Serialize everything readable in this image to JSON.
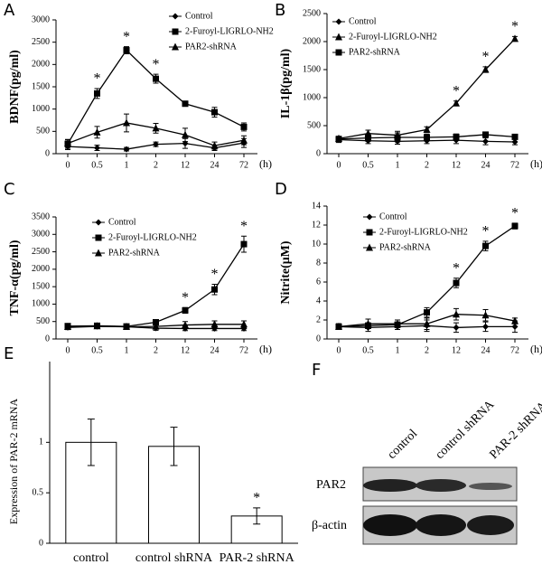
{
  "chart_data": [
    {
      "type": "line",
      "panel_label": "A",
      "y_label": "BDNF(pg/ml)",
      "x_label": "(h)",
      "categories": [
        "0",
        "0.5",
        "1",
        "2",
        "12",
        "24",
        "72"
      ],
      "ylim": [
        0,
        3000
      ],
      "yticks": [
        0,
        500,
        1000,
        1500,
        2000,
        2500,
        3000
      ],
      "series": [
        {
          "name": "Control",
          "color": "#000000",
          "marker": "diamond",
          "values": [
            160,
            130,
            100,
            210,
            230,
            130,
            240
          ],
          "errors": [
            70,
            60,
            40,
            50,
            110,
            60,
            100
          ]
        },
        {
          "name": "2-Furoyl-LIGRLO-NH2",
          "color": "#000000",
          "marker": "square",
          "values": [
            220,
            1350,
            2320,
            1680,
            1120,
            930,
            600
          ],
          "errors": [
            100,
            110,
            80,
            100,
            40,
            110,
            90
          ]
        },
        {
          "name": "PAR2-shRNA",
          "color": "#000000",
          "marker": "triangle",
          "values": [
            230,
            480,
            690,
            570,
            420,
            180,
            300
          ],
          "errors": [
            80,
            130,
            200,
            110,
            150,
            80,
            100
          ]
        }
      ],
      "annotations": [
        {
          "text": "*",
          "series": 1,
          "category": 1
        },
        {
          "text": "*",
          "series": 1,
          "category": 2
        },
        {
          "text": "*",
          "series": 1,
          "category": 3
        }
      ]
    },
    {
      "type": "line",
      "panel_label": "B",
      "y_label": "IL-1β(pg/ml)",
      "x_label": "(h)",
      "categories": [
        "0",
        "0.5",
        "1",
        "2",
        "12",
        "24",
        "72"
      ],
      "ylim": [
        0,
        2500
      ],
      "yticks": [
        0,
        500,
        1000,
        1500,
        2000,
        2500
      ],
      "series": [
        {
          "name": "Control",
          "color": "#000000",
          "marker": "diamond",
          "values": [
            250,
            230,
            220,
            230,
            240,
            220,
            210
          ],
          "errors": [
            50,
            50,
            50,
            50,
            60,
            60,
            50
          ]
        },
        {
          "name": "2-Furoyl-LIGRLO-NH2",
          "color": "#000000",
          "marker": "triangle",
          "values": [
            270,
            360,
            330,
            430,
            900,
            1500,
            2050
          ],
          "errors": [
            40,
            60,
            70,
            50,
            40,
            50,
            40
          ]
        },
        {
          "name": "PAR2-shRNA",
          "color": "#000000",
          "marker": "square",
          "values": [
            260,
            280,
            290,
            290,
            300,
            340,
            300
          ],
          "errors": [
            40,
            60,
            80,
            60,
            50,
            40,
            40
          ]
        }
      ],
      "annotations": [
        {
          "text": "*",
          "series": 1,
          "category": 4
        },
        {
          "text": "*",
          "series": 1,
          "category": 5
        },
        {
          "text": "*",
          "series": 1,
          "category": 6
        }
      ]
    },
    {
      "type": "line",
      "panel_label": "C",
      "y_label": "TNF-α(pg/ml)",
      "x_label": "(h)",
      "categories": [
        "0",
        "0.5",
        "1",
        "2",
        "12",
        "24",
        "72"
      ],
      "ylim": [
        0,
        3500
      ],
      "yticks": [
        0,
        500,
        1000,
        1500,
        2000,
        2500,
        3000,
        3500
      ],
      "series": [
        {
          "name": "Control",
          "color": "#000000",
          "marker": "diamond",
          "values": [
            330,
            360,
            350,
            310,
            300,
            300,
            300
          ],
          "errors": [
            60,
            50,
            50,
            60,
            60,
            60,
            60
          ]
        },
        {
          "name": "2-Furoyl-LIGRLO-NH2",
          "color": "#000000",
          "marker": "square",
          "values": [
            370,
            380,
            360,
            480,
            820,
            1420,
            2720
          ],
          "errors": [
            60,
            50,
            50,
            60,
            80,
            150,
            230
          ]
        },
        {
          "name": "PAR2-shRNA",
          "color": "#000000",
          "marker": "triangle",
          "values": [
            350,
            370,
            350,
            360,
            400,
            420,
            420
          ],
          "errors": [
            60,
            50,
            60,
            60,
            100,
            100,
            100
          ]
        }
      ],
      "annotations": [
        {
          "text": "*",
          "series": 1,
          "category": 4
        },
        {
          "text": "*",
          "series": 1,
          "category": 5
        },
        {
          "text": "*",
          "series": 1,
          "category": 6
        }
      ]
    },
    {
      "type": "line",
      "panel_label": "D",
      "y_label": "Nitrite(μM)",
      "x_label": "(h)",
      "categories": [
        "0",
        "0.5",
        "1",
        "2",
        "12",
        "24",
        "72"
      ],
      "ylim": [
        0,
        14
      ],
      "yticks": [
        0,
        2,
        4,
        6,
        8,
        10,
        12,
        14
      ],
      "series": [
        {
          "name": "Control",
          "color": "#000000",
          "marker": "diamond",
          "values": [
            1.3,
            1.2,
            1.3,
            1.4,
            1.2,
            1.3,
            1.3
          ],
          "errors": [
            0.3,
            0.4,
            0.3,
            0.6,
            0.5,
            0.5,
            0.6
          ]
        },
        {
          "name": "2-Furoyl-LIGRLO-NH2",
          "color": "#000000",
          "marker": "square",
          "values": [
            1.3,
            1.4,
            1.5,
            2.8,
            5.9,
            9.8,
            11.9
          ],
          "errors": [
            0.3,
            0.3,
            0.3,
            0.5,
            0.5,
            0.5,
            0.3
          ]
        },
        {
          "name": "PAR2-shRNA",
          "color": "#000000",
          "marker": "triangle",
          "values": [
            1.3,
            1.6,
            1.6,
            1.6,
            2.6,
            2.5,
            1.9
          ],
          "errors": [
            0.3,
            0.5,
            0.4,
            0.6,
            0.6,
            0.6,
            0.3
          ]
        }
      ],
      "annotations": [
        {
          "text": "*",
          "series": 1,
          "category": 4
        },
        {
          "text": "*",
          "series": 1,
          "category": 5
        },
        {
          "text": "*",
          "series": 1,
          "category": 6
        }
      ]
    },
    {
      "type": "bar",
      "panel_label": "E",
      "y_label": "Expression of PAR-2 mRNA",
      "categories": [
        "control",
        "control shRNA",
        "PAR-2 shRNA"
      ],
      "ylim": [
        0,
        1.8
      ],
      "yticks": [
        0,
        0.5,
        1
      ],
      "color": "#ffffff",
      "values": [
        1,
        0.96,
        0.27
      ],
      "errors": [
        0.23,
        0.19,
        0.08
      ],
      "annotations": [
        {
          "text": "*",
          "category": 2
        }
      ]
    }
  ],
  "blot": {
    "panel_label": "F",
    "columns": [
      "control",
      "control shRNA",
      "PAR-2 shRNA"
    ],
    "rows": [
      "PAR2",
      "β-actin"
    ]
  }
}
